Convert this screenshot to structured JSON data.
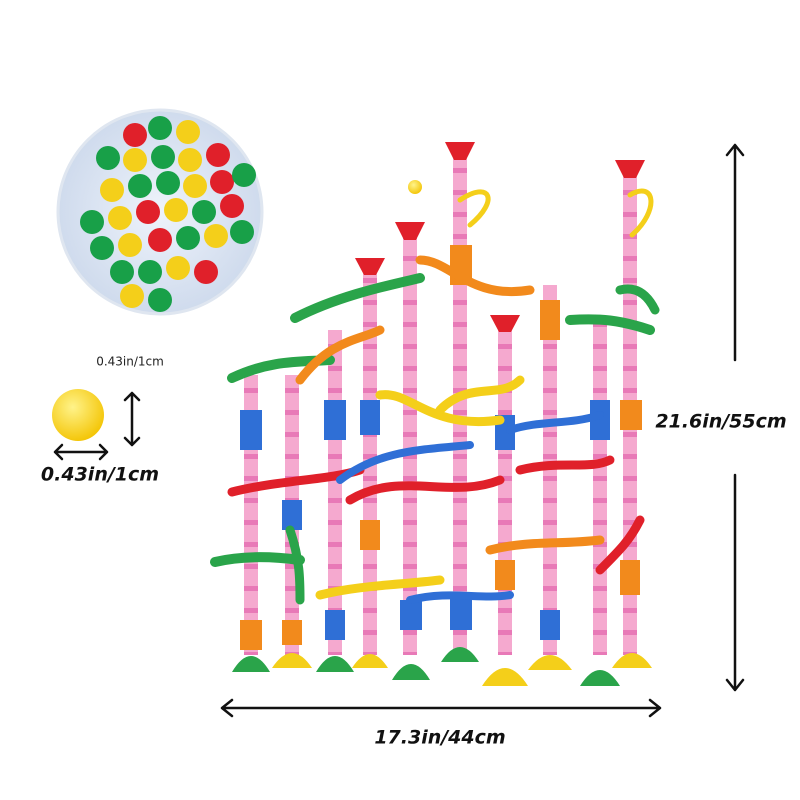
{
  "ball_size": {
    "height_label": "0.43in/1cm",
    "width_label": "0.43in/1cm"
  },
  "toy_size": {
    "height_label": "21.6in/55cm",
    "width_label": "17.3in/44cm"
  }
}
